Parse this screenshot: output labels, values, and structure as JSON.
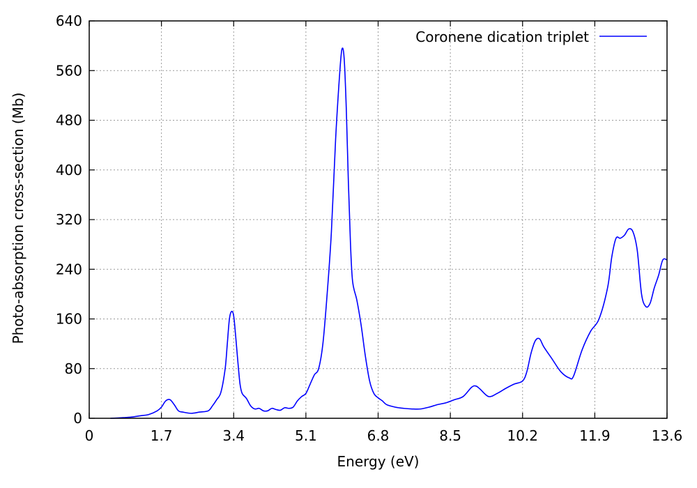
{
  "chart_data": {
    "type": "line",
    "title": "",
    "xlabel": "Energy (eV)",
    "ylabel": "Photo-absorption cross-section (Mb)",
    "xlim": [
      0,
      13.6
    ],
    "ylim": [
      0,
      640
    ],
    "xticks": [
      0,
      1.7,
      3.4,
      5.1,
      6.8,
      8.5,
      10.2,
      11.9,
      13.6
    ],
    "xtick_labels": [
      "0",
      "1.7",
      "3.4",
      "5.1",
      "6.8",
      "8.5",
      "10.2",
      "11.9",
      "13.6"
    ],
    "yticks": [
      0,
      80,
      160,
      240,
      320,
      400,
      480,
      560,
      640
    ],
    "ytick_labels": [
      "0",
      "80",
      "160",
      "240",
      "320",
      "400",
      "480",
      "560",
      "640"
    ],
    "grid": true,
    "legend_position": "top-right",
    "series": [
      {
        "name": "Coronene dication triplet",
        "color": "#0000ff",
        "x": [
          0.5,
          0.8,
          1.0,
          1.2,
          1.4,
          1.6,
          1.7,
          1.8,
          1.9,
          2.0,
          2.1,
          2.2,
          2.4,
          2.6,
          2.8,
          2.9,
          3.0,
          3.1,
          3.2,
          3.25,
          3.3,
          3.35,
          3.4,
          3.45,
          3.5,
          3.55,
          3.6,
          3.7,
          3.8,
          3.9,
          4.0,
          4.1,
          4.2,
          4.3,
          4.4,
          4.5,
          4.6,
          4.7,
          4.8,
          4.9,
          5.0,
          5.1,
          5.2,
          5.3,
          5.4,
          5.5,
          5.6,
          5.7,
          5.8,
          5.9,
          5.95,
          6.0,
          6.05,
          6.1,
          6.15,
          6.2,
          6.3,
          6.4,
          6.5,
          6.6,
          6.7,
          6.8,
          6.9,
          7.0,
          7.2,
          7.4,
          7.6,
          7.8,
          8.0,
          8.2,
          8.4,
          8.6,
          8.8,
          9.0,
          9.1,
          9.2,
          9.4,
          9.6,
          9.8,
          10.0,
          10.2,
          10.3,
          10.4,
          10.5,
          10.6,
          10.7,
          10.9,
          11.1,
          11.3,
          11.4,
          11.6,
          11.8,
          12.0,
          12.2,
          12.3,
          12.4,
          12.5,
          12.6,
          12.7,
          12.8,
          12.9,
          13.0,
          13.1,
          13.2,
          13.3,
          13.4,
          13.5,
          13.6
        ],
        "y": [
          0,
          1,
          2,
          4,
          6,
          12,
          18,
          28,
          30,
          22,
          12,
          10,
          8,
          10,
          12,
          20,
          30,
          42,
          80,
          120,
          160,
          172,
          165,
          130,
          90,
          55,
          40,
          32,
          20,
          15,
          16,
          12,
          12,
          16,
          14,
          13,
          17,
          16,
          18,
          28,
          35,
          40,
          55,
          70,
          80,
          120,
          200,
          300,
          450,
          560,
          595,
          580,
          500,
          380,
          280,
          220,
          190,
          150,
          100,
          60,
          40,
          33,
          28,
          22,
          18,
          16,
          15,
          15,
          18,
          22,
          25,
          30,
          35,
          50,
          52,
          47,
          35,
          40,
          48,
          55,
          60,
          75,
          105,
          125,
          128,
          115,
          95,
          75,
          65,
          68,
          110,
          140,
          160,
          210,
          260,
          290,
          290,
          295,
          305,
          300,
          270,
          200,
          180,
          185,
          210,
          230,
          255,
          255
        ]
      }
    ]
  }
}
